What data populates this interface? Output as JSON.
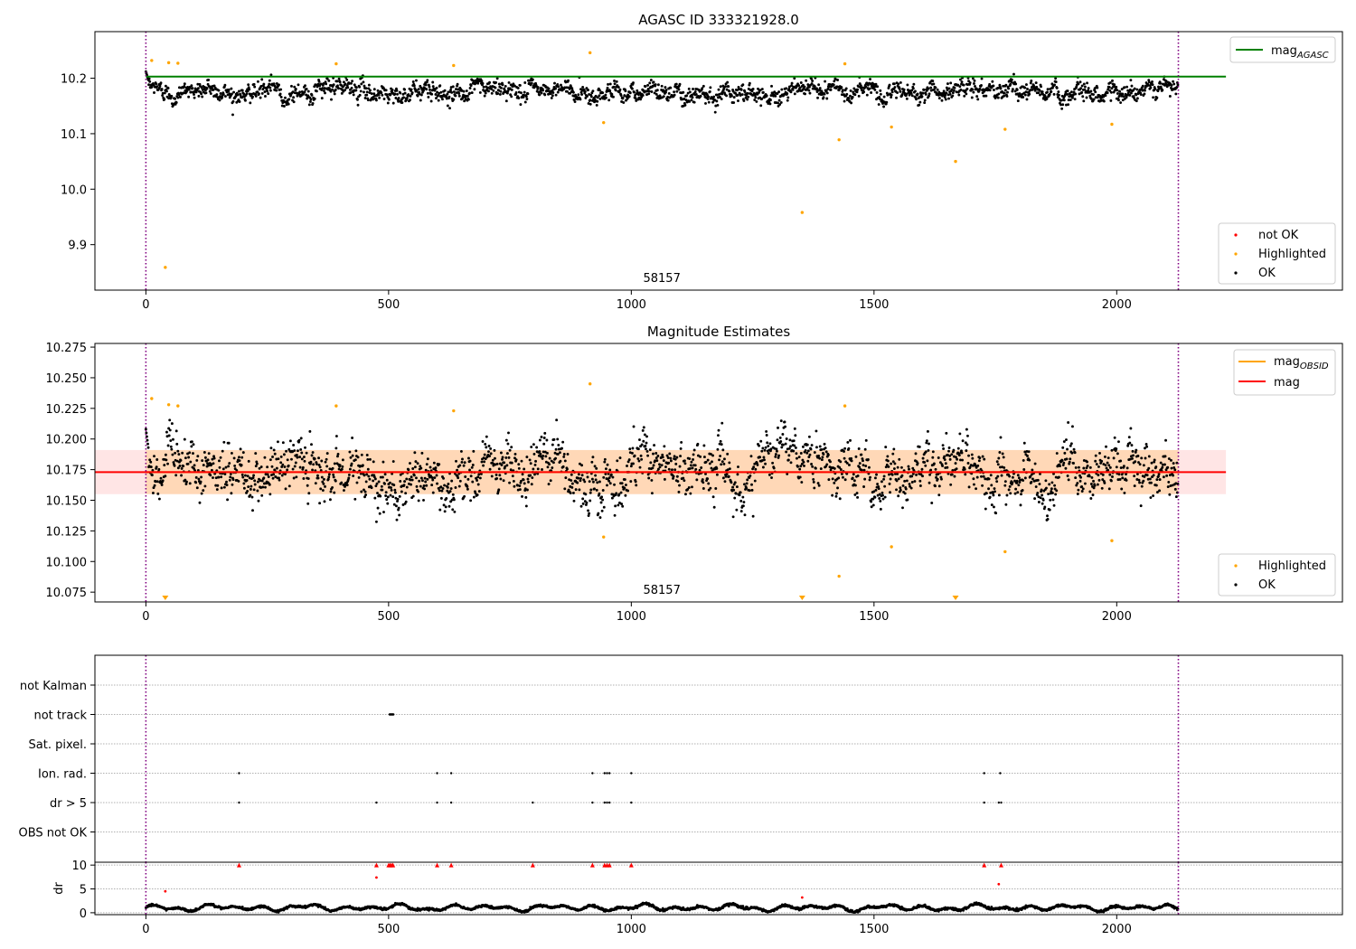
{
  "chart_data": [
    {
      "type": "scatter",
      "title": "AGASC ID 333321928.0",
      "xlim": [
        -105,
        2465
      ],
      "ylim": [
        9.818,
        10.284
      ],
      "xticks": [
        0,
        500,
        1000,
        1500,
        2000
      ],
      "xtick_labels": [
        "0",
        "500",
        "1000",
        "1500",
        "2000"
      ],
      "yticks": [
        9.9,
        10.0,
        10.1,
        10.2
      ],
      "ytick_labels": [
        "9.9",
        "10.0",
        "10.1",
        "10.2"
      ],
      "obsid_label": "58157",
      "obsid_label_x": 1063,
      "vlines": [
        0,
        2127
      ],
      "mag_agasc": 10.203,
      "mag_agasc_xrange": [
        0,
        2225
      ],
      "legend_lines": [
        {
          "label": "mag",
          "sub": "AGASC",
          "color": "#008000"
        }
      ],
      "legend_points": [
        {
          "label": "not OK",
          "color": "#ff0000"
        },
        {
          "label": "Highlighted",
          "color": "#ffa500"
        },
        {
          "label": "OK",
          "color": "#000000"
        }
      ],
      "ok_series": {
        "name": "OK",
        "count": 2127,
        "mean": 10.177,
        "sigma": 0.015,
        "color": "#000000"
      },
      "highlighted": [
        {
          "x": 12,
          "y": 10.232
        },
        {
          "x": 40,
          "y": 9.859
        },
        {
          "x": 47,
          "y": 10.228
        },
        {
          "x": 66,
          "y": 10.227
        },
        {
          "x": 392,
          "y": 10.226
        },
        {
          "x": 634,
          "y": 10.223
        },
        {
          "x": 915,
          "y": 10.246
        },
        {
          "x": 943,
          "y": 10.12
        },
        {
          "x": 1352,
          "y": 9.958
        },
        {
          "x": 1428,
          "y": 10.089
        },
        {
          "x": 1440,
          "y": 10.226
        },
        {
          "x": 1536,
          "y": 10.112
        },
        {
          "x": 1668,
          "y": 10.05
        },
        {
          "x": 1770,
          "y": 10.108
        },
        {
          "x": 1990,
          "y": 10.117
        }
      ]
    },
    {
      "type": "scatter",
      "title": "Magnitude Estimates",
      "xlim": [
        -105,
        2465
      ],
      "ylim": [
        10.067,
        10.278
      ],
      "xticks": [
        0,
        500,
        1000,
        1500,
        2000
      ],
      "xtick_labels": [
        "0",
        "500",
        "1000",
        "1500",
        "2000"
      ],
      "yticks": [
        10.075,
        10.1,
        10.125,
        10.15,
        10.175,
        10.2,
        10.225,
        10.25,
        10.275
      ],
      "ytick_labels": [
        "10.075",
        "10.100",
        "10.125",
        "10.150",
        "10.175",
        "10.200",
        "10.225",
        "10.250",
        "10.275"
      ],
      "obsid_label": "58157",
      "obsid_label_x": 1063,
      "vlines": [
        0,
        2127
      ],
      "mag": 10.173,
      "mag_band": [
        10.155,
        10.191
      ],
      "mag_band_xrange": [
        -105,
        2225
      ],
      "legend_lines": [
        {
          "label": "mag",
          "sub": "OBSID",
          "color": "#ffa500"
        },
        {
          "label": "mag",
          "sub": "",
          "color": "#ff0000"
        }
      ],
      "legend_points": [
        {
          "label": "Highlighted",
          "color": "#ffa500"
        },
        {
          "label": "OK",
          "color": "#000000"
        }
      ],
      "ok_series": {
        "name": "OK",
        "count": 2127,
        "mean": 10.173,
        "sigma": 0.019,
        "color": "#000000"
      },
      "highlighted": [
        {
          "x": 12,
          "y": 10.233
        },
        {
          "x": 47,
          "y": 10.228
        },
        {
          "x": 66,
          "y": 10.227
        },
        {
          "x": 392,
          "y": 10.227
        },
        {
          "x": 634,
          "y": 10.223
        },
        {
          "x": 915,
          "y": 10.245
        },
        {
          "x": 943,
          "y": 10.12
        },
        {
          "x": 1428,
          "y": 10.088
        },
        {
          "x": 1440,
          "y": 10.227
        },
        {
          "x": 1536,
          "y": 10.112
        },
        {
          "x": 1770,
          "y": 10.108
        },
        {
          "x": 1990,
          "y": 10.117
        }
      ],
      "offscale_low_markers": [
        40,
        1352,
        1668
      ]
    },
    {
      "type": "scatter",
      "title": "",
      "xlim": [
        -105,
        2465
      ],
      "categories": [
        "not Kalman",
        "not track",
        "Sat. pixel.",
        "Ion. rad.",
        "dr > 5",
        "OBS not OK"
      ],
      "flag_points": {
        "not track": [
          502,
          503,
          504,
          505,
          506,
          507,
          508,
          509,
          510
        ],
        "Ion. rad.": [
          192,
          600,
          629,
          920,
          945,
          950,
          955,
          1000,
          1727,
          1760
        ],
        "dr > 5": [
          192,
          475,
          600,
          629,
          797,
          920,
          945,
          950,
          955,
          1000,
          1727,
          1757,
          1762
        ]
      },
      "vlines": [
        0,
        2127
      ]
    },
    {
      "type": "scatter",
      "ylabel": "dr",
      "xlim": [
        -105,
        2465
      ],
      "ylim": [
        -0.4,
        10.6
      ],
      "xticks": [
        0,
        500,
        1000,
        1500,
        2000
      ],
      "xtick_labels": [
        "0",
        "500",
        "1000",
        "1500",
        "2000"
      ],
      "yticks": [
        0,
        5,
        10
      ],
      "ytick_labels": [
        "0",
        "5",
        "10"
      ],
      "vlines": [
        0,
        2127
      ],
      "dr_series": {
        "name": "dr",
        "count": 2127,
        "color": "#000000"
      },
      "red_caps_at_10": [
        192,
        475,
        500,
        503,
        506,
        509,
        600,
        629,
        797,
        920,
        945,
        950,
        955,
        1000,
        1727,
        1762
      ],
      "red_points": [
        {
          "x": 40,
          "y": 4.5
        },
        {
          "x": 475,
          "y": 7.4
        },
        {
          "x": 1352,
          "y": 3.2
        },
        {
          "x": 1757,
          "y": 6.0
        }
      ]
    }
  ]
}
